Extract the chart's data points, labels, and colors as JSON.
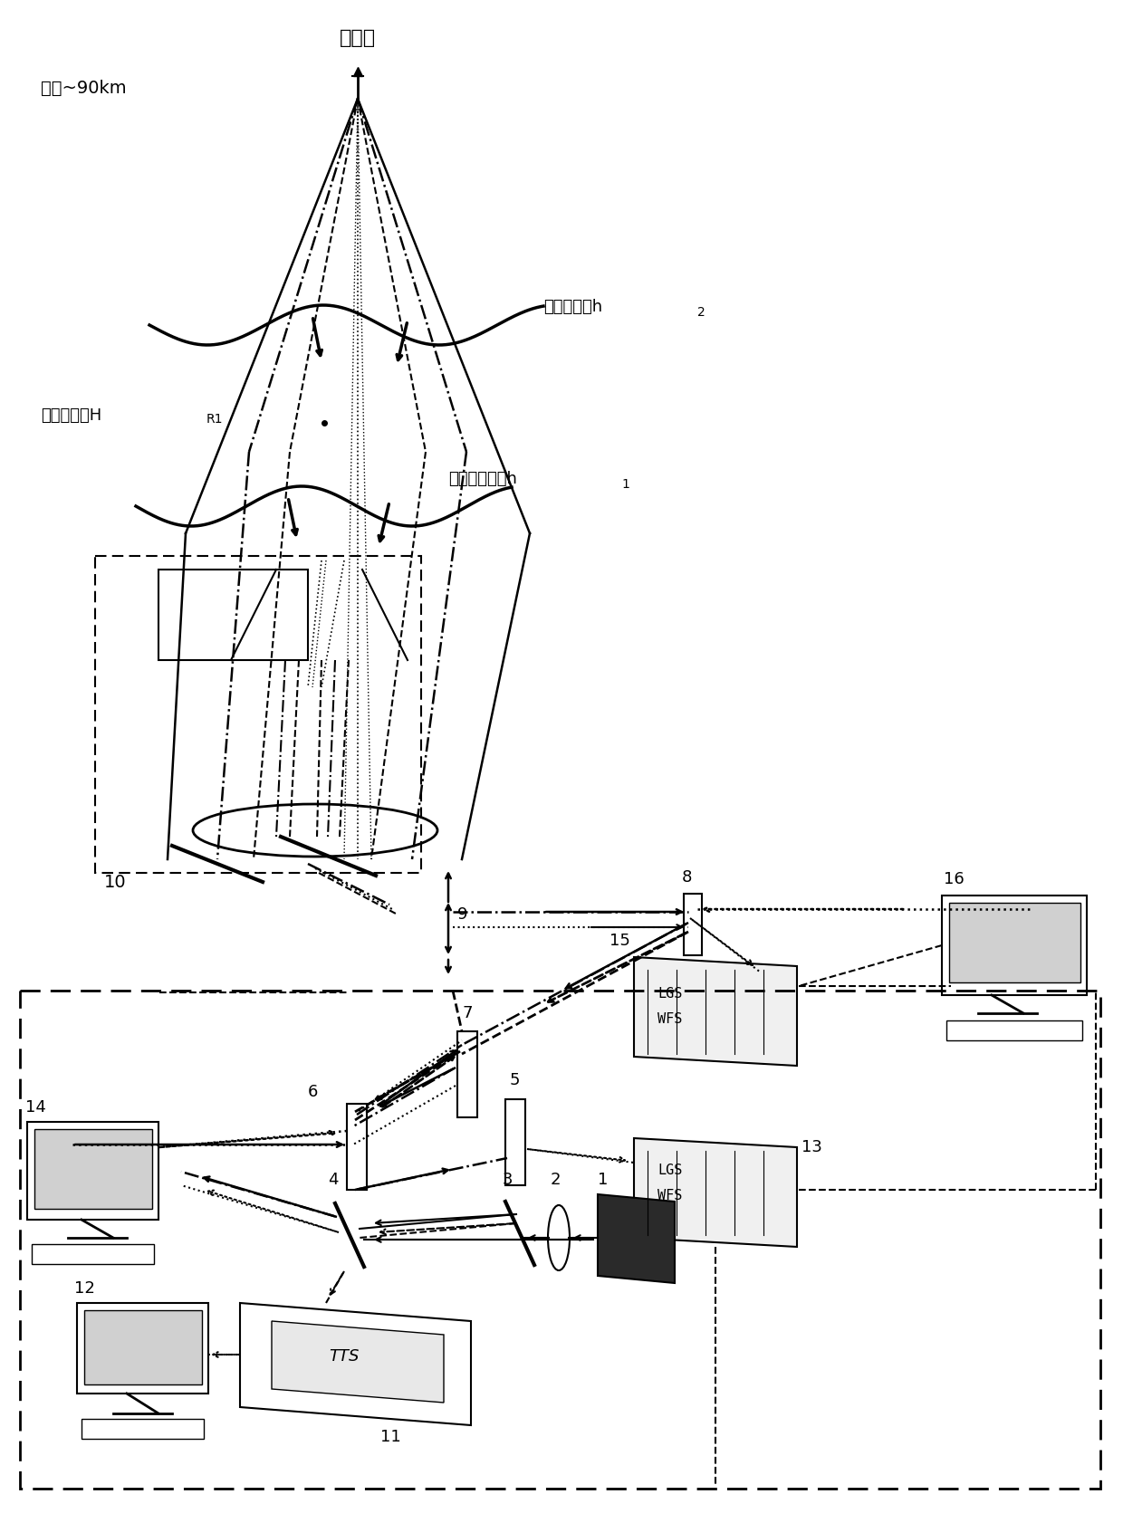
{
  "bg_color": "#ffffff",
  "figsize": [
    12.4,
    16.83
  ],
  "dpi": 100,
  "texts": {
    "na_beacon": "钠信标",
    "na_layer": "钠层~90km",
    "high_turb": "高层湍流，h",
    "high_turb_sub": "2",
    "rayleigh_label": "瑞利信标，H",
    "rayleigh_sub": "R1",
    "surface_turb": "地表层湍流，h",
    "surface_turb_sub": "1",
    "num_10": "10",
    "num_9": "9",
    "num_8": "8",
    "num_7": "7",
    "num_6": "6",
    "num_5": "5",
    "num_4": "4",
    "num_3": "3",
    "num_2": "2",
    "num_1": "1",
    "num_11": "11",
    "num_12": "12",
    "num_13": "13",
    "num_14": "14",
    "num_15": "15",
    "num_16": "16",
    "lgs_wfs": "LGS\nWFS",
    "tts": "TTS"
  }
}
